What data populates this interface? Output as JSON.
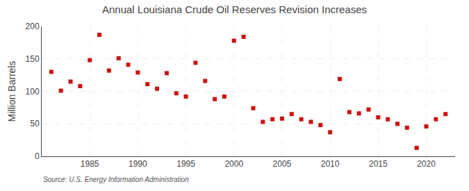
{
  "chart_data": {
    "type": "scatter",
    "title": "Annual Louisiana Crude Oil Reserves Revision Increases",
    "ylabel": "Million Barrels",
    "annotations": [
      "Source: U.S. Energy Information Administration"
    ],
    "x": [
      1981,
      1982,
      1983,
      1984,
      1985,
      1986,
      1987,
      1988,
      1989,
      1990,
      1991,
      1992,
      1993,
      1994,
      1995,
      1996,
      1997,
      1998,
      1999,
      2000,
      2001,
      2002,
      2003,
      2004,
      2005,
      2006,
      2007,
      2008,
      2009,
      2010,
      2011,
      2012,
      2013,
      2014,
      2015,
      2016,
      2017,
      2018,
      2019,
      2020,
      2021,
      2022
    ],
    "values": [
      130,
      101,
      115,
      108,
      148,
      187,
      132,
      151,
      141,
      129,
      111,
      104,
      128,
      97,
      92,
      144,
      116,
      88,
      92,
      178,
      184,
      74,
      53,
      57,
      58,
      65,
      57,
      53,
      48,
      37,
      119,
      68,
      66,
      72,
      60,
      57,
      50,
      44,
      13,
      46,
      57,
      65
    ],
    "color": "#cc1111",
    "marker": "square",
    "xlim": [
      1980,
      2023
    ],
    "xticks": [
      1985,
      1990,
      1995,
      2000,
      2005,
      2010,
      2015,
      2020
    ],
    "ylim": [
      0,
      200
    ],
    "yticks": [
      0,
      50,
      100,
      150,
      200
    ],
    "grid": true
  }
}
